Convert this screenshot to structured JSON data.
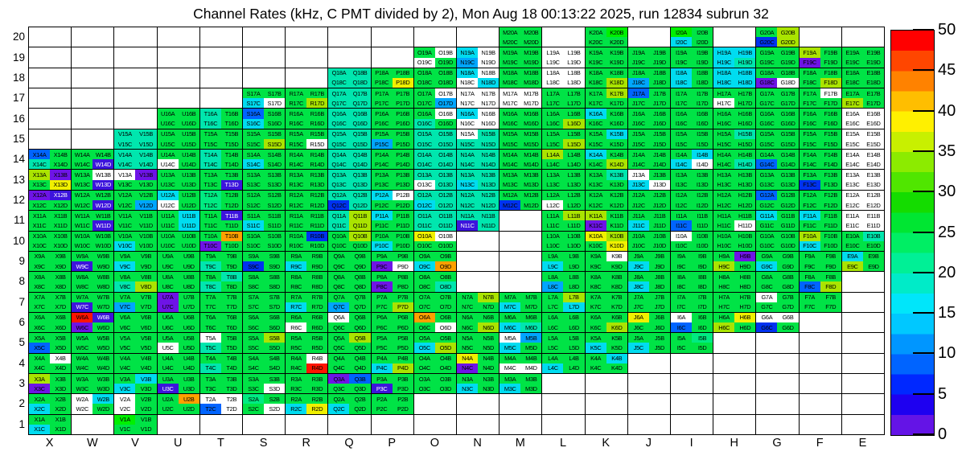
{
  "title": "Channel Rates (kHz, C PMT divided by 2), Mon Aug 18 00:13:22 2025, run 12834 subrun 32",
  "x_axis": {
    "labels": [
      "X",
      "W",
      "V",
      "U",
      "T",
      "S",
      "R",
      "Q",
      "P",
      "O",
      "N",
      "M",
      "L",
      "K",
      "J",
      "I",
      "H",
      "G",
      "F",
      "E"
    ]
  },
  "y_axis": {
    "labels": [
      "20",
      "19",
      "18",
      "17",
      "16",
      "15",
      "14",
      "13",
      "12",
      "11",
      "10",
      "9",
      "8",
      "7",
      "6",
      "5",
      "4",
      "3",
      "2",
      "1"
    ]
  },
  "colorbar": {
    "min": 0,
    "max": 50,
    "tick_labels": [
      "50",
      "45",
      "40",
      "35",
      "30",
      "25",
      "20",
      "15",
      "10",
      "5",
      "0"
    ],
    "band_colors_top_to_bottom": [
      "#FF0000",
      "#FF4600",
      "#FF8200",
      "#FFBE00",
      "#FFF000",
      "#C8F000",
      "#8CEB00",
      "#50E600",
      "#14DC00",
      "#00E632",
      "#00EE64",
      "#00F096",
      "#00EBC8",
      "#00E6FA",
      "#00C8FF",
      "#0096FF",
      "#0064FF",
      "#0028FF",
      "#1E00F0",
      "#6414E6"
    ]
  },
  "heatmap": {
    "columns": [
      "X",
      "W",
      "V",
      "U",
      "T",
      "S",
      "R",
      "Q",
      "P",
      "O",
      "N",
      "M",
      "L",
      "K",
      "J",
      "I",
      "H",
      "G",
      "F",
      "E"
    ],
    "cell_suffix_order": [
      "A",
      "B",
      "C",
      "D"
    ],
    "palette": {
      "g": "#00F000",
      "G": "#00E346",
      "S": "#00EB82",
      "T": "#00E6AE",
      "C": "#00DCF0",
      "c": "#00A6FF",
      "B": "#0064FF",
      "N": "#0032F0",
      "V": "#3C14DC",
      "P": "#6E14E6",
      "Y": "#F0F000",
      "L": "#AAE400",
      "O": "#FFA000",
      "R": "#FF1400",
      "W": "#FFFFFF"
    },
    "white_text_codes": [
      "V"
    ],
    "rows": [
      {
        "row": 20,
        "modules": [
          "",
          "",
          "",
          "",
          "",
          "",
          "",
          "",
          "",
          "",
          "",
          "GGGG",
          "",
          "GgGG",
          "",
          "gGCG",
          "",
          "GLNL",
          "",
          ""
        ]
      },
      {
        "row": 19,
        "modules": [
          "",
          "",
          "",
          "",
          "",
          "",
          "",
          "",
          "",
          "GWWG",
          "CWcW",
          "GGGG",
          "WWWW",
          "GGGG",
          "GGGG",
          "GGGG",
          "CCCT",
          "GGGG",
          "LGPG",
          "GGGG"
        ]
      },
      {
        "row": 18,
        "modules": [
          "",
          "",
          "",
          "",
          "",
          "",
          "",
          "TTTT",
          "GGGY",
          "GGGG",
          "CWWC",
          "GGGG",
          "WWWW",
          "GGGL",
          "GGcG",
          "CGCG",
          "CCCC",
          "GGPW",
          "GGGL",
          "GGGG"
        ]
      },
      {
        "row": 17,
        "modules": [
          "",
          "",
          "",
          "",
          "",
          "GGCW",
          "GGGL",
          "TTTT",
          "GGGG",
          "GWGc",
          "WWWW",
          "WWWW",
          "GGGG",
          "GLGG",
          "BGGG",
          "GGGG",
          "GGWG",
          "GGGG",
          "GWGG",
          "GGLG"
        ]
      },
      {
        "row": 16,
        "modules": [
          "",
          "",
          "",
          "GGGG",
          "TGTG",
          "BGCG",
          "GGGG",
          "TTTT",
          "GGGG",
          "GWTG",
          "CWWW",
          "GGGG",
          "GGGL",
          "CGGG",
          "GGGG",
          "GGGG",
          "GGGG",
          "GGGG",
          "GGGG",
          "WWWW"
        ]
      },
      {
        "row": 15,
        "modules": [
          "",
          "",
          "TTTT",
          "GGGG",
          "GGGG",
          "GGGL",
          "GGGW",
          "TTTT",
          "GGcG",
          "TTTT",
          "WTTT",
          "GGGG",
          "GGGL",
          "GCGG",
          "GGGG",
          "GGGG",
          "GTGG",
          "GGGG",
          "GGGG",
          "WWWW"
        ]
      },
      {
        "row": 14,
        "modules": [
          "BGTG",
          "GGGV",
          "TTTT",
          "GGWG",
          "TGTG",
          "GGCG",
          "GGGG",
          "TTTT",
          "GGGG",
          "TTTT",
          "TTTT",
          "GGGG",
          "LGGG",
          "CGGL",
          "GGGG",
          "GCCW",
          "GGGT",
          "GGBG",
          "GGGG",
          "WWWW"
        ]
      },
      {
        "row": 13,
        "modules": [
          "LPGY",
          "GWGV",
          "WPGG",
          "GGGG",
          "GGGV",
          "GGGG",
          "GGGG",
          "TTTT",
          "GGGG",
          "TTWT",
          "TTCT",
          "GGGG",
          "GGGG",
          "GTGG",
          "WGCW",
          "GGGG",
          "GGGG",
          "GGGG",
          "GGNG",
          "WWWW"
        ]
      },
      {
        "row": 12,
        "modules": [
          "PVGG",
          "GGGV",
          "GGGc",
          "CGWG",
          "SGSG",
          "GGGG",
          "GGGG",
          "TTNT",
          "CWGG",
          "TTCT",
          "TTTT",
          "GGNG",
          "GGWG",
          "GGGG",
          "GGGG",
          "GGGG",
          "GGGG",
          "BGGG",
          "GGGG",
          "WWWW"
        ]
      },
      {
        "row": 11,
        "modules": [
          "GGGG",
          "GGGV",
          "GGGG",
          "GCGC",
          "GVGG",
          "GGCG",
          "GGGG",
          "TLTL",
          "CGGG",
          "TTTT",
          "TTVT",
          "",
          "GLGG",
          "LGPG",
          "GGCG",
          "GGBG",
          "GGGW",
          "CGGG",
          "CGGG",
          "WWWW"
        ]
      },
      {
        "row": 10,
        "modules": [
          "GGGG",
          "GGGG",
          "GGCG",
          "GGGG",
          "GOPG",
          "GGGG",
          "GNGG",
          "GLGG",
          "GGCG",
          "YWGG",
          "",
          "",
          "GGGG",
          "YLGY",
          "GGGG",
          "WGGG",
          "GGGG",
          "GGGG",
          "LGCG",
          "GTGG"
        ]
      },
      {
        "row": 9,
        "modules": [
          "GGGG",
          "GGVG",
          "GGCG",
          "GGGG",
          "GGTG",
          "GGNG",
          "GGCG",
          "GGGG",
          "GGPW",
          "GGCO",
          "",
          "",
          "GGCG",
          "GWGG",
          "GGCG",
          "GGGG",
          "GPLG",
          "GGCG",
          "GGGG",
          "CGLG"
        ]
      },
      {
        "row": 8,
        "modules": [
          "GGGG",
          "GGGG",
          "GGTL",
          "GGGG",
          "GTTG",
          "GGGG",
          "GGGG",
          "GGGG",
          "GGPG",
          "GGGT",
          "",
          "",
          "GGcG",
          "GGGG",
          "GGCG",
          "GGGG",
          "GGGG",
          "GGGG",
          "GGBL",
          ""
        ]
      },
      {
        "row": 7,
        "modules": [
          "GGGG",
          "GGVG",
          "GGcG",
          "PGPG",
          "GGGG",
          "GGGG",
          "GGCG",
          "GGcG",
          "GGGL",
          "GGGG",
          "GLGG",
          "GGCG",
          "GLGC",
          "GGGG",
          "GGGG",
          "GGGG",
          "GGGG",
          "WGGG",
          "GGGG",
          ""
        ]
      },
      {
        "row": 6,
        "modules": [
          "GGGG",
          "RVPG",
          "GGGG",
          "GGGG",
          "GGGG",
          "GGGG",
          "GGWG",
          "WGGG",
          "GGGG",
          "OGGW",
          "GGGL",
          "GGCT",
          "GGGG",
          "GGGL",
          "YGGG",
          "WGBG",
          "GYLG",
          "WWNG",
          "",
          ""
        ]
      },
      {
        "row": 5,
        "modules": [
          "GGBG",
          "GGGG",
          "GGGG",
          "GGWG",
          "WGTG",
          "GLGG",
          "GGGG",
          "GLGG",
          "GGGG",
          "GGCL",
          "GGGG",
          "WcCG",
          "GGGG",
          "GGCG",
          "GGCG",
          "GSGG",
          "",
          "",
          "",
          ""
        ]
      },
      {
        "row": 4,
        "modules": [
          "GWGG",
          "GGGG",
          "GGGG",
          "GGGG",
          "GGTG",
          "GGGG",
          "GWGR",
          "GGGG",
          "GGCL",
          "GGGG",
          "YGPG",
          "GGWW",
          "GGCG",
          "GCGG",
          "",
          "",
          "",
          "",
          "",
          ""
        ]
      },
      {
        "row": 3,
        "modules": [
          "LGPG",
          "GGGG",
          "GCCG",
          "GGVG",
          "GGGG",
          "GGGW",
          "GGGG",
          "PBGG",
          "GGVG",
          "GGGG",
          "GGCG",
          "GGCG",
          "",
          "",
          "",
          "",
          "",
          "",
          "",
          ""
        ]
      },
      {
        "row": 2,
        "modules": [
          "GGCG",
          "WCWG",
          "WGWG",
          "GOGG",
          "WWBW",
          "SGGW",
          "GGCY",
          "GGCG",
          "GGGG",
          "",
          "",
          "",
          "",
          "",
          "",
          "",
          "",
          "",
          "",
          ""
        ]
      },
      {
        "row": 1,
        "modules": [
          "GGCG",
          "",
          "gGGG",
          "",
          "",
          "",
          "",
          "",
          "",
          "",
          "",
          "",
          "",
          "",
          "",
          "",
          "",
          "",
          "",
          ""
        ]
      }
    ]
  }
}
